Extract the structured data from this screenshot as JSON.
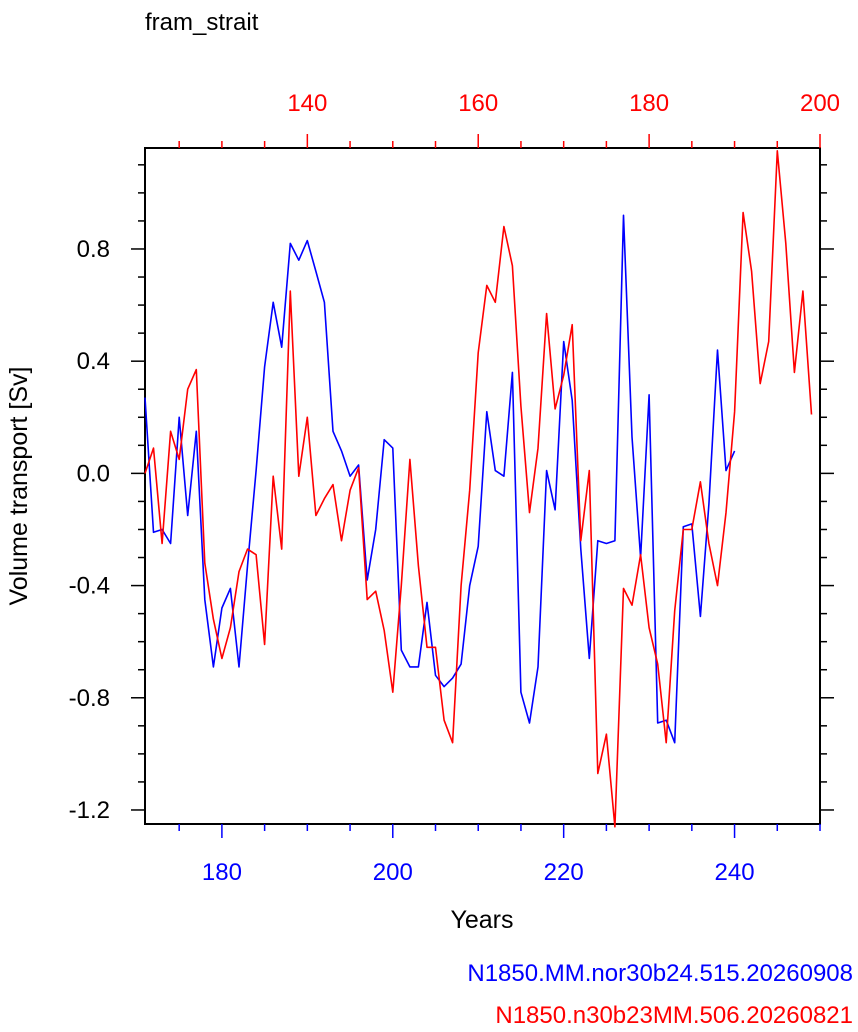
{
  "chart_data": {
    "type": "line",
    "title": "fram_strait",
    "xlabel": "Years",
    "ylabel": "Volume transport [Sv]",
    "ylim": [
      -1.25,
      1.16
    ],
    "grid": false,
    "y_ticks": [
      "0.8",
      "0.4",
      "0.0",
      "-0.4",
      "-0.8",
      "-1.2"
    ],
    "y_tick_values": [
      0.8,
      0.4,
      0.0,
      -0.4,
      -0.8,
      -1.2
    ],
    "bottom_axis": {
      "color": "#0000ff",
      "xlim": [
        171,
        250
      ],
      "tick_labels": [
        "180",
        "200",
        "220",
        "240"
      ],
      "tick_values": [
        180,
        200,
        220,
        240
      ]
    },
    "top_axis": {
      "color": "#ff0000",
      "xlim": [
        121,
        200
      ],
      "tick_labels": [
        "140",
        "160",
        "180",
        "200"
      ],
      "tick_values": [
        140,
        160,
        180,
        200
      ]
    },
    "series": [
      {
        "name": "N1850.MM.nor30b24.515.20260908",
        "color": "#0000ff",
        "axis": "bottom",
        "x_start": 171,
        "values": [
          0.27,
          -0.21,
          -0.2,
          -0.25,
          0.2,
          -0.15,
          0.15,
          -0.45,
          -0.69,
          -0.48,
          -0.41,
          -0.69,
          -0.33,
          0.01,
          0.38,
          0.61,
          0.45,
          0.82,
          0.76,
          0.83,
          0.72,
          0.61,
          0.15,
          0.08,
          -0.01,
          0.03,
          -0.38,
          -0.2,
          0.12,
          0.09,
          -0.63,
          -0.69,
          -0.69,
          -0.46,
          -0.72,
          -0.76,
          -0.73,
          -0.68,
          -0.4,
          -0.26,
          0.22,
          0.01,
          -0.01,
          0.36,
          -0.78,
          -0.89,
          -0.69,
          0.01,
          -0.13,
          0.47,
          0.26,
          -0.27,
          -0.66,
          -0.24,
          -0.25,
          -0.24,
          0.92,
          0.13,
          -0.3,
          0.28,
          -0.89,
          -0.88,
          -0.96,
          -0.19,
          -0.18,
          -0.51,
          -0.11,
          0.44,
          0.01,
          0.08
        ]
      },
      {
        "name": "N1850.n30b23MM.506.20260821",
        "color": "#ff0000",
        "axis": "top",
        "x_start": 121,
        "values": [
          0.0,
          0.09,
          -0.25,
          0.15,
          0.05,
          0.3,
          0.37,
          -0.32,
          -0.52,
          -0.66,
          -0.55,
          -0.35,
          -0.27,
          -0.29,
          -0.61,
          -0.01,
          -0.27,
          0.65,
          -0.01,
          0.2,
          -0.15,
          -0.09,
          -0.04,
          -0.24,
          -0.06,
          0.02,
          -0.45,
          -0.42,
          -0.56,
          -0.78,
          -0.4,
          0.05,
          -0.33,
          -0.62,
          -0.62,
          -0.88,
          -0.96,
          -0.4,
          -0.06,
          0.43,
          0.67,
          0.61,
          0.88,
          0.74,
          0.24,
          -0.14,
          0.09,
          0.57,
          0.23,
          0.35,
          0.53,
          -0.24,
          0.01,
          -1.07,
          -0.93,
          -1.26,
          -0.41,
          -0.47,
          -0.29,
          -0.55,
          -0.68,
          -0.96,
          -0.49,
          -0.2,
          -0.2,
          -0.03,
          -0.25,
          -0.4,
          -0.14,
          0.22,
          0.93,
          0.72,
          0.32,
          0.47,
          1.15,
          0.82,
          0.36,
          0.65,
          0.21
        ]
      }
    ]
  }
}
